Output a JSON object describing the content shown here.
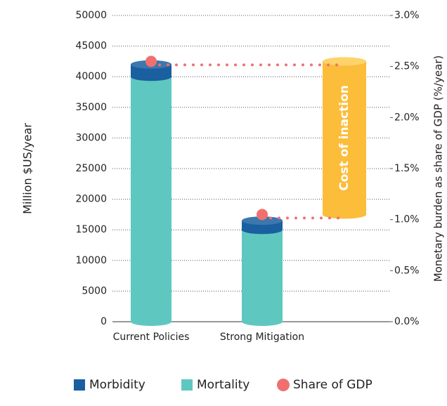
{
  "chart_data": {
    "type": "bar",
    "categories": [
      "Current Policies",
      "Strong Mitigation"
    ],
    "series": [
      {
        "name": "Mortality",
        "color": "#5ec8c0",
        "values": [
          40000,
          15000
        ]
      },
      {
        "name": "Morbidity",
        "color": "#1a5fa0",
        "values": [
          2000,
          1500
        ]
      },
      {
        "name": "Share of GDP",
        "color": "#f07070",
        "axis": "y2",
        "values": [
          2.55,
          1.05
        ]
      }
    ],
    "ylabel": "Million $US/year",
    "y2label": "Monetary burden as share of GDP (%/year)",
    "annotation": "Cost of inaction",
    "ylim": [
      0,
      50000
    ],
    "yticks": [
      0,
      5000,
      10000,
      15000,
      20000,
      25000,
      30000,
      35000,
      40000,
      45000,
      50000
    ],
    "y2lim": [
      0,
      3.0
    ],
    "y2ticks": [
      {
        "value": 0,
        "label": "0.0%"
      },
      {
        "value": 0.5,
        "label": "0.5%"
      },
      {
        "value": 1.0,
        "label": "1.0%"
      },
      {
        "value": 1.5,
        "label": "1.5%"
      },
      {
        "value": 2.0,
        "label": "2.0%"
      },
      {
        "value": 2.5,
        "label": "2.5%"
      },
      {
        "value": 3.0,
        "label": "3.0%"
      }
    ],
    "grid": true,
    "legend": "bottom"
  }
}
